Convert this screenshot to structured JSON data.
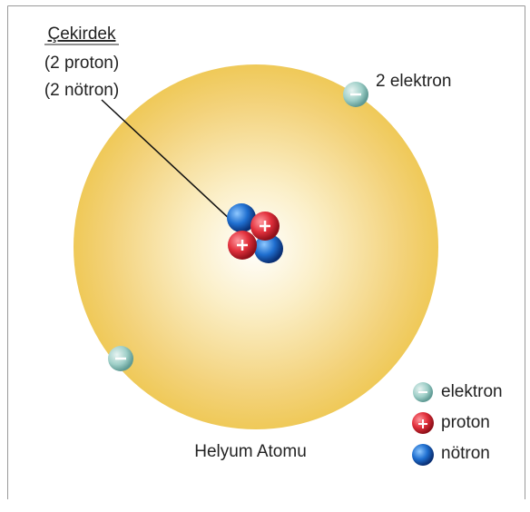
{
  "nucleus_label": {
    "title": "Çekirdek",
    "protons": "(2 proton)",
    "neutrons": "(2 nötron)"
  },
  "electron_label": "2 elektron",
  "caption": "Helyum Atomu",
  "legend": [
    "elektron",
    "proton",
    "nötron"
  ]
}
